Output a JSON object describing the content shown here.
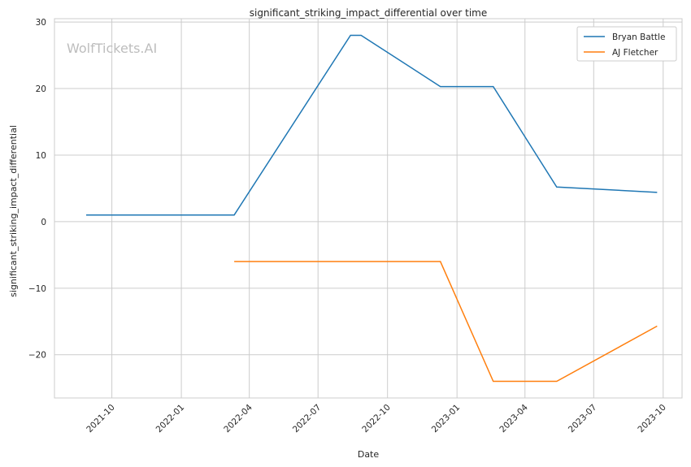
{
  "watermark": "WolfTickets.AI",
  "chart_data": {
    "type": "line",
    "title": "significant_striking_impact_differential over time",
    "xlabel": "Date",
    "ylabel": "significant_striking_impact_differential",
    "x_axis_type": "date",
    "xlim": [
      "2021-07-17",
      "2023-10-26"
    ],
    "ylim": [
      -26.5,
      30.5
    ],
    "x_ticks": [
      "2021-10-01",
      "2022-01-01",
      "2022-04-01",
      "2022-07-01",
      "2022-10-01",
      "2023-01-01",
      "2023-04-01",
      "2023-07-01",
      "2023-10-01"
    ],
    "x_tick_labels": [
      "2021-10",
      "2022-01",
      "2022-04",
      "2022-07",
      "2022-10",
      "2023-01",
      "2023-04",
      "2023-07",
      "2023-10"
    ],
    "y_ticks": [
      -20,
      -10,
      0,
      10,
      20,
      30
    ],
    "y_tick_labels": [
      "−20",
      "−10",
      "0",
      "10",
      "20",
      "30"
    ],
    "grid": true,
    "legend_position": "top-right",
    "series": [
      {
        "name": "Bryan Battle",
        "color": "#1f77b4",
        "points": [
          {
            "x": "2021-08-28",
            "y": 1.0
          },
          {
            "x": "2022-03-12",
            "y": 1.0
          },
          {
            "x": "2022-08-13",
            "y": 28.0
          },
          {
            "x": "2022-08-27",
            "y": 28.0
          },
          {
            "x": "2022-12-10",
            "y": 20.3
          },
          {
            "x": "2023-02-18",
            "y": 20.3
          },
          {
            "x": "2023-05-13",
            "y": 5.2
          },
          {
            "x": "2023-09-23",
            "y": 4.4
          }
        ]
      },
      {
        "name": "AJ Fletcher",
        "color": "#ff7f0e",
        "points": [
          {
            "x": "2022-03-12",
            "y": -6.0
          },
          {
            "x": "2022-12-10",
            "y": -6.0
          },
          {
            "x": "2023-02-18",
            "y": -24.0
          },
          {
            "x": "2023-05-13",
            "y": -24.0
          },
          {
            "x": "2023-09-23",
            "y": -15.7
          }
        ]
      }
    ]
  }
}
